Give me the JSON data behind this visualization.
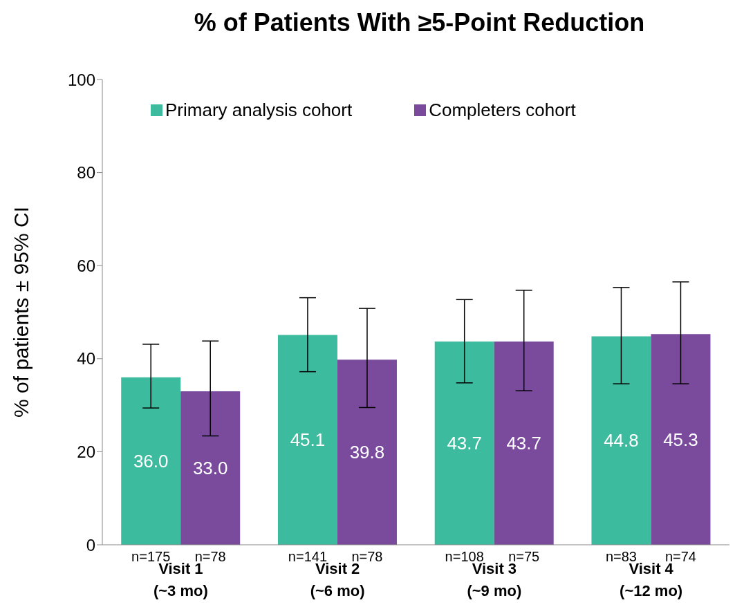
{
  "chart_data": {
    "type": "bar",
    "title": "% of Patients With ≥5-Point Reduction",
    "ylabel": "% of patients ± 95% CI",
    "categories": [
      "Visit 1\n(~3 mo)",
      "Visit 2\n(~6 mo)",
      "Visit 3\n(~9 mo)",
      "Visit 4\n(~12 mo)"
    ],
    "series": [
      {
        "name": "Primary analysis cohort",
        "color": "#3dbb9f",
        "values": [
          36.0,
          45.1,
          43.7,
          44.8
        ],
        "value_labels": [
          "36.0",
          "45.1",
          "43.7",
          "44.8"
        ],
        "errors": [
          [
            29.4,
            43.1
          ],
          [
            37.2,
            53.1
          ],
          [
            34.8,
            52.7
          ],
          [
            34.6,
            55.3
          ]
        ]
      },
      {
        "name": "Completers cohort",
        "color": "#7a4b9c",
        "values": [
          33.0,
          39.8,
          43.7,
          45.3
        ],
        "value_labels": [
          "33.0",
          "39.8",
          "43.7",
          "45.3"
        ],
        "errors": [
          [
            23.4,
            43.8
          ],
          [
            29.5,
            50.8
          ],
          [
            33.1,
            54.7
          ],
          [
            34.6,
            56.5
          ]
        ]
      }
    ],
    "annotations": [
      "n=175",
      "n=78",
      "n=141",
      "n=78",
      "n=108",
      "n=75",
      "n=83",
      "n=74"
    ],
    "ylim": [
      0,
      100
    ],
    "yticks": [
      0,
      20,
      40,
      60,
      80,
      100
    ],
    "grid": false,
    "legend": "top"
  }
}
